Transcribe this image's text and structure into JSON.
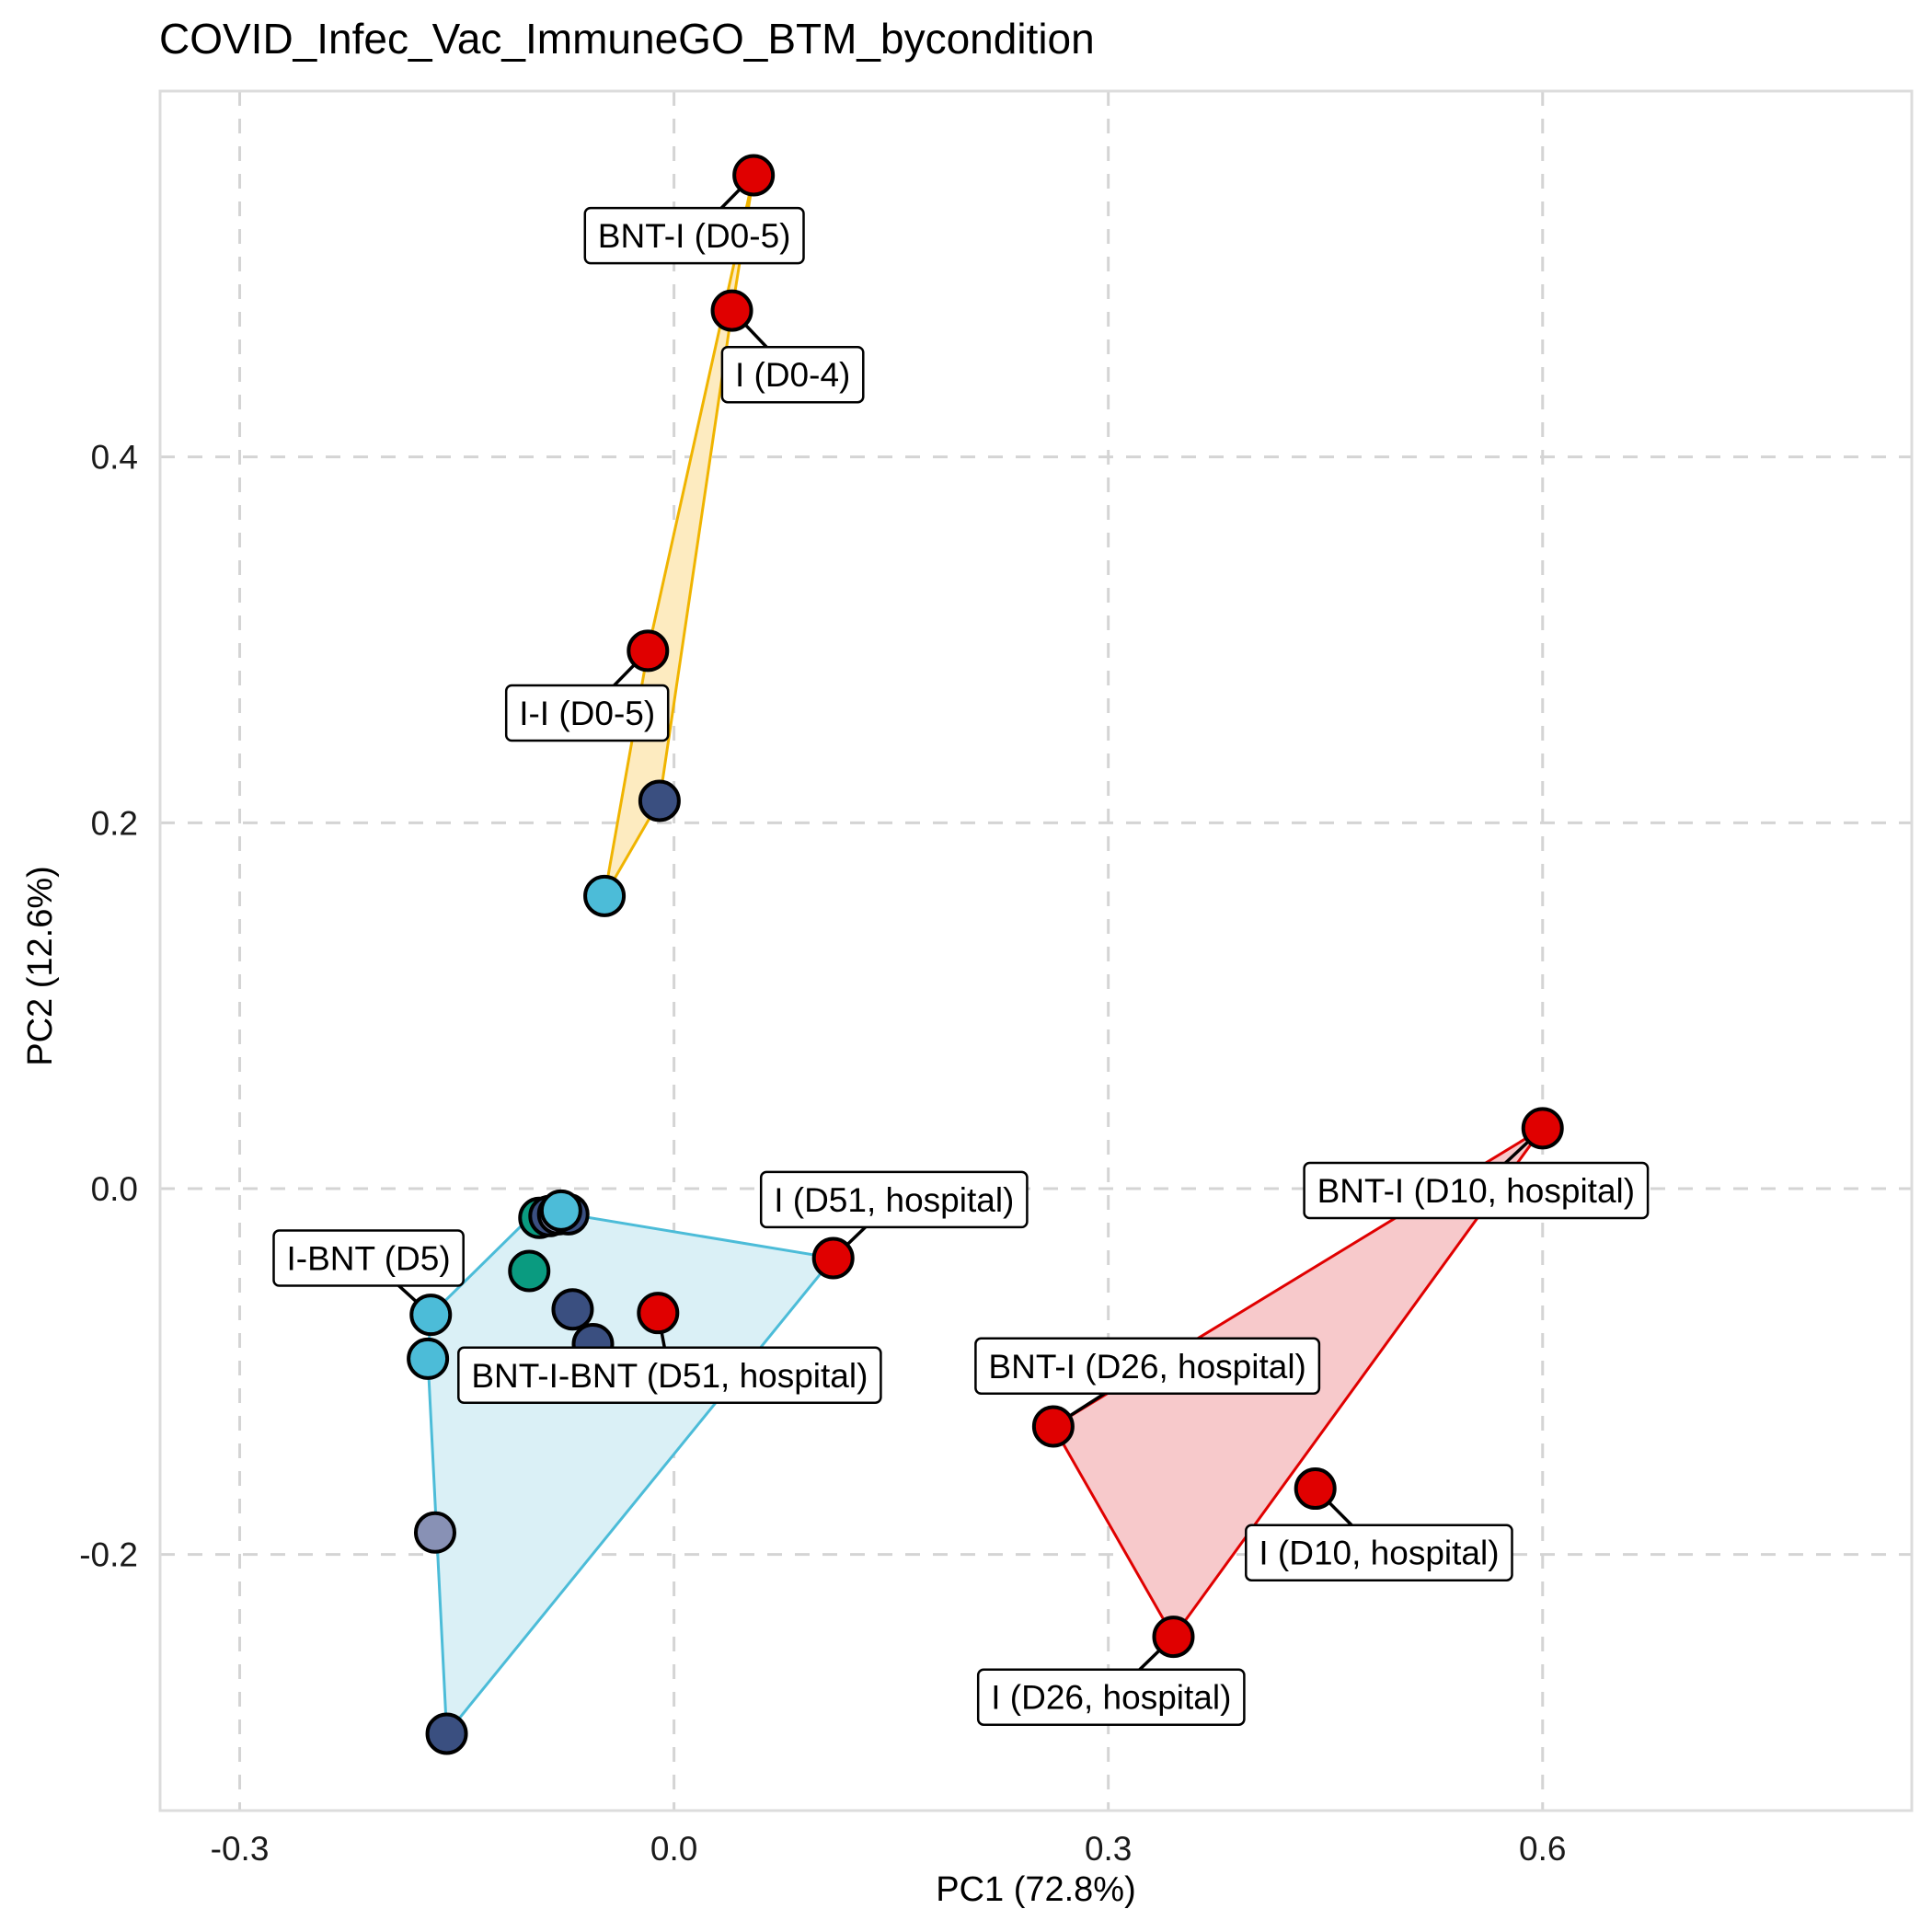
{
  "chart_data": {
    "type": "scatter",
    "title": "COVID_Infec_Vac_ImmuneGO_BTM_bycondition",
    "xlabel": "PC1 (72.8%)",
    "ylabel": "PC2 (12.6%)",
    "xlim": [
      -0.355,
      0.855
    ],
    "ylim": [
      -0.34,
      0.6
    ],
    "xticks": [
      -0.3,
      0.0,
      0.3,
      0.6
    ],
    "xtick_labels": [
      "-0.3",
      "0.0",
      "0.3",
      "0.6"
    ],
    "yticks": [
      -0.2,
      0.0,
      0.2,
      0.4
    ],
    "ytick_labels": [
      "-0.2",
      "0.0",
      "0.2",
      "0.4"
    ],
    "grid": true,
    "legend": "none",
    "colors": {
      "red": "#e00000",
      "navy": "#3a4f80",
      "light_blue": "#4cbcd8",
      "teal": "#0a9b80",
      "slate": "#8891b5"
    },
    "hulls": [
      {
        "fill": "#fdebc0",
        "stroke": "#f0b400",
        "vertices": [
          [
            0.055,
            0.554
          ],
          [
            0.04,
            0.48
          ],
          [
            -0.01,
            0.212
          ],
          [
            -0.048,
            0.16
          ],
          [
            -0.018,
            0.294
          ]
        ]
      },
      {
        "fill": "#daf0f6",
        "stroke": "#4cbcd8",
        "vertices": [
          [
            -0.073,
            -0.014
          ],
          [
            0.11,
            -0.038
          ],
          [
            -0.157,
            -0.298
          ],
          [
            -0.17,
            -0.093
          ],
          [
            -0.168,
            -0.069
          ],
          [
            -0.1,
            -0.016
          ]
        ]
      },
      {
        "fill": "#f7c9cb",
        "stroke": "#e00000",
        "vertices": [
          [
            0.6,
            0.033
          ],
          [
            0.345,
            -0.245
          ],
          [
            0.262,
            -0.13
          ]
        ]
      }
    ],
    "points": [
      {
        "x": 0.055,
        "y": 0.554,
        "color": "red"
      },
      {
        "x": 0.04,
        "y": 0.48,
        "color": "red"
      },
      {
        "x": -0.018,
        "y": 0.294,
        "color": "red"
      },
      {
        "x": -0.01,
        "y": 0.212,
        "color": "navy"
      },
      {
        "x": -0.048,
        "y": 0.16,
        "color": "light_blue"
      },
      {
        "x": 0.6,
        "y": 0.033,
        "color": "red"
      },
      {
        "x": 0.11,
        "y": -0.038,
        "color": "red"
      },
      {
        "x": -0.011,
        "y": -0.068,
        "color": "red"
      },
      {
        "x": 0.262,
        "y": -0.13,
        "color": "red"
      },
      {
        "x": 0.443,
        "y": -0.164,
        "color": "red"
      },
      {
        "x": 0.345,
        "y": -0.245,
        "color": "red"
      },
      {
        "x": -0.168,
        "y": -0.069,
        "color": "light_blue"
      },
      {
        "x": -0.17,
        "y": -0.093,
        "color": "light_blue"
      },
      {
        "x": -0.165,
        "y": -0.188,
        "color": "slate"
      },
      {
        "x": -0.157,
        "y": -0.298,
        "color": "navy"
      },
      {
        "x": -0.1,
        "y": -0.045,
        "color": "teal"
      },
      {
        "x": -0.093,
        "y": -0.016,
        "color": "teal"
      },
      {
        "x": -0.086,
        "y": -0.015,
        "color": "navy"
      },
      {
        "x": -0.08,
        "y": -0.014,
        "color": "slate"
      },
      {
        "x": -0.073,
        "y": -0.014,
        "color": "navy"
      },
      {
        "x": -0.078,
        "y": -0.012,
        "color": "light_blue"
      },
      {
        "x": -0.07,
        "y": -0.066,
        "color": "navy"
      },
      {
        "x": -0.056,
        "y": -0.085,
        "color": "navy"
      }
    ],
    "annotations": [
      {
        "text": "BNT-I (D0-5)",
        "x": 0.055,
        "y": 0.554,
        "lx": 0.014,
        "ly": 0.521
      },
      {
        "text": "I (D0-4)",
        "x": 0.04,
        "y": 0.48,
        "lx": 0.082,
        "ly": 0.445
      },
      {
        "text": "I-I (D0-5)",
        "x": -0.018,
        "y": 0.294,
        "lx": -0.06,
        "ly": 0.26
      },
      {
        "text": "I (D51, hospital)",
        "x": 0.11,
        "y": -0.038,
        "lx": 0.152,
        "ly": -0.006
      },
      {
        "text": "BNT-I (D10, hospital)",
        "x": 0.6,
        "y": 0.033,
        "lx": 0.554,
        "ly": -0.001
      },
      {
        "text": "I-BNT (D5)",
        "x": -0.168,
        "y": -0.069,
        "lx": -0.211,
        "ly": -0.038
      },
      {
        "text": "BNT-I-BNT (D51, hospital)",
        "x": -0.011,
        "y": -0.068,
        "lx": -0.003,
        "ly": -0.102
      },
      {
        "text": "BNT-I (D26, hospital)",
        "x": 0.262,
        "y": -0.13,
        "lx": 0.327,
        "ly": -0.097
      },
      {
        "text": "I (D10, hospital)",
        "x": 0.443,
        "y": -0.164,
        "lx": 0.487,
        "ly": -0.199
      },
      {
        "text": "I (D26, hospital)",
        "x": 0.345,
        "y": -0.245,
        "lx": 0.302,
        "ly": -0.278
      }
    ]
  }
}
